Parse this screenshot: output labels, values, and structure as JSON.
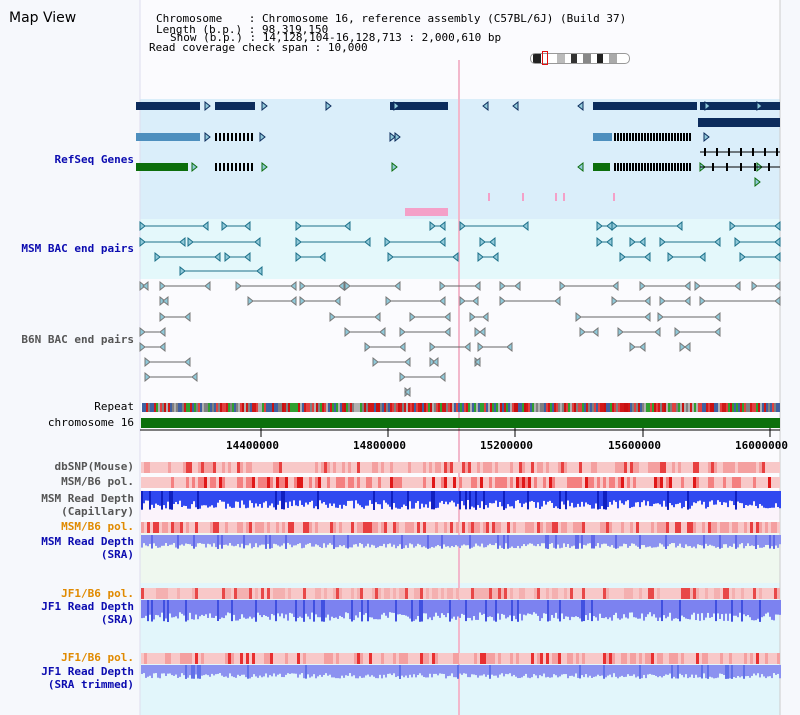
{
  "app": {
    "title": "Map View"
  },
  "info": {
    "chromosome_label": "Chromosome",
    "chromosome_value": "Chromosome 16, reference assembly (C57BL/6J) (Build 37)",
    "length_label": "Length (b.p.)",
    "length_value": "98,319,150",
    "show_label": "Show (b.p.)",
    "show_value": "14,128,104-16,128,713 : 2,000,610 bp",
    "coverage_label": "Read coverage check span",
    "coverage_value": "10,000"
  },
  "tracks": {
    "refseq": "RefSeq Genes",
    "msm_bac": "MSM BAC end pairs",
    "b6n_bac": "B6N BAC end pairs",
    "repeat": "Repeat",
    "chromosome": "chromosome 16",
    "dbsnp": "dbSNP(Mouse)",
    "msm_b6_pol_1": "MSM/B6 pol.",
    "msm_read_depth_cap_1": "MSM Read Depth",
    "msm_read_depth_cap_2": "(Capillary)",
    "msm_b6_pol_2": "MSM/B6 pol.",
    "msm_read_depth_sra_1": "MSM Read Depth",
    "msm_read_depth_sra_2": "(SRA)",
    "jf1_b6_pol_1": "JF1/B6 pol.",
    "jf1_read_depth_sra_1": "JF1 Read Depth",
    "jf1_read_depth_sra_2": "(SRA)",
    "jf1_b6_pol_2": "JF1/B6 pol.",
    "jf1_read_depth_trim_1": "JF1 Read Depth",
    "jf1_read_depth_trim_2": "(SRA trimmed)"
  },
  "axis": {
    "ticks": [
      "14400000",
      "14800000",
      "15200000",
      "15600000",
      "16000000"
    ]
  },
  "colors": {
    "refseq_bg": "#daeefa",
    "msm_bg": "#e4f8fb",
    "navy": "#0c2c5c",
    "lightblue": "#4d8fbe",
    "green": "#0c6e0c",
    "teal": "#1b6f88",
    "gray": "#666666",
    "chrom_green": "#0c700c",
    "pink": "#f4a0c8"
  }
}
